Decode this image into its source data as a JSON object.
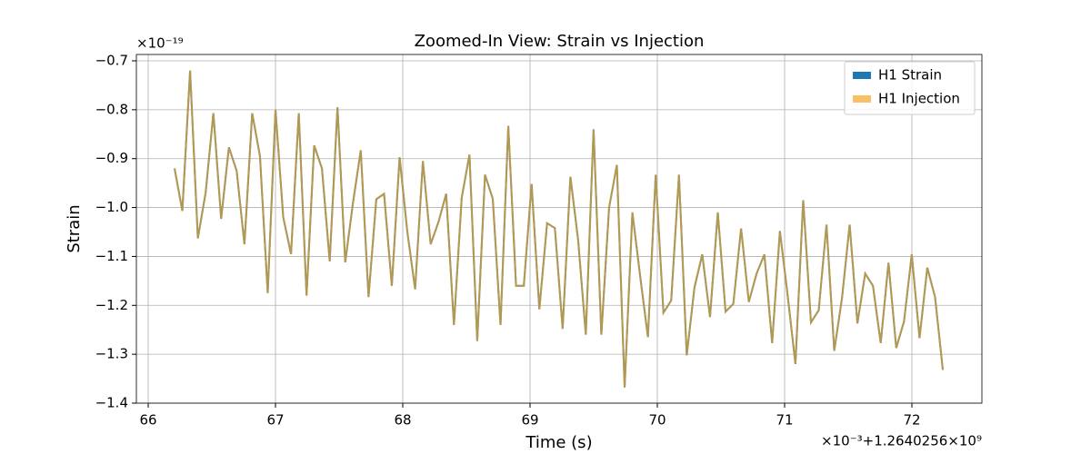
{
  "chart_data": {
    "type": "line",
    "title": "Zoomed-In View: Strain vs Injection",
    "xlabel": "Time (s)",
    "ylabel": "Strain",
    "x_offset_label": "×10⁻³+1.2640256×10⁹",
    "y_offset_label": "×10⁻¹⁹",
    "x": [
      66.207,
      66.268,
      66.329,
      66.39,
      66.451,
      66.512,
      66.573,
      66.634,
      66.695,
      66.756,
      66.817,
      66.878,
      66.939,
      67.0,
      67.061,
      67.122,
      67.183,
      67.244,
      67.304,
      67.365,
      67.426,
      67.487,
      67.548,
      67.609,
      67.67,
      67.731,
      67.792,
      67.853,
      67.914,
      67.975,
      68.036,
      68.097,
      68.158,
      68.219,
      68.28,
      68.341,
      68.402,
      68.463,
      68.524,
      68.585,
      68.646,
      68.707,
      68.768,
      68.829,
      68.89,
      68.951,
      69.012,
      69.073,
      69.134,
      69.195,
      69.256,
      69.317,
      69.378,
      69.438,
      69.499,
      69.56,
      69.621,
      69.682,
      69.743,
      69.804,
      69.865,
      69.926,
      69.987,
      70.048,
      70.109,
      70.17,
      70.231,
      70.292,
      70.353,
      70.414,
      70.475,
      70.536,
      70.597,
      70.658,
      70.719,
      70.78,
      70.841,
      70.902,
      70.963,
      71.024,
      71.085,
      71.146,
      71.207,
      71.268,
      71.329,
      71.39,
      71.451,
      71.511,
      71.572,
      71.633,
      71.694,
      71.755,
      71.816,
      71.877,
      71.938,
      71.999,
      72.06,
      72.121,
      72.182,
      72.243
    ],
    "series": [
      {
        "name": "H1 Strain",
        "color": "#1f77b4",
        "alpha": 1,
        "values": [
          -0.92,
          -1.007,
          -0.72,
          -1.063,
          -0.97,
          -0.807,
          -1.023,
          -0.877,
          -0.925,
          -1.075,
          -0.807,
          -0.895,
          -1.175,
          -0.8,
          -1.02,
          -1.095,
          -0.807,
          -1.18,
          -0.873,
          -0.92,
          -1.11,
          -0.795,
          -1.112,
          -0.99,
          -0.883,
          -1.183,
          -0.983,
          -0.972,
          -1.16,
          -0.897,
          -1.05,
          -1.167,
          -0.905,
          -1.075,
          -1.03,
          -0.972,
          -1.24,
          -0.98,
          -0.892,
          -1.273,
          -0.933,
          -0.982,
          -1.24,
          -0.833,
          -1.16,
          -1.16,
          -0.952,
          -1.208,
          -1.032,
          -1.042,
          -1.248,
          -0.937,
          -1.067,
          -1.26,
          -0.84,
          -1.26,
          -1.0,
          -0.913,
          -1.368,
          -1.01,
          -1.14,
          -1.265,
          -0.933,
          -1.215,
          -1.19,
          -0.933,
          -1.302,
          -1.163,
          -1.096,
          -1.224,
          -1.01,
          -1.213,
          -1.197,
          -1.043,
          -1.193,
          -1.135,
          -1.096,
          -1.277,
          -1.048,
          -1.18,
          -1.32,
          -0.985,
          -1.235,
          -1.21,
          -1.035,
          -1.293,
          -1.185,
          -1.035,
          -1.237,
          -1.135,
          -1.16,
          -1.277,
          -1.113,
          -1.287,
          -1.233,
          -1.096,
          -1.267,
          -1.123,
          -1.183,
          -1.332
        ]
      },
      {
        "name": "H1 Injection",
        "color": "#f5a623",
        "alpha": 0.7,
        "values": [
          -0.92,
          -1.007,
          -0.72,
          -1.063,
          -0.97,
          -0.807,
          -1.023,
          -0.877,
          -0.925,
          -1.075,
          -0.807,
          -0.895,
          -1.175,
          -0.8,
          -1.02,
          -1.095,
          -0.807,
          -1.18,
          -0.873,
          -0.92,
          -1.11,
          -0.795,
          -1.112,
          -0.99,
          -0.883,
          -1.183,
          -0.983,
          -0.972,
          -1.16,
          -0.897,
          -1.05,
          -1.167,
          -0.905,
          -1.075,
          -1.03,
          -0.972,
          -1.24,
          -0.98,
          -0.892,
          -1.273,
          -0.933,
          -0.982,
          -1.24,
          -0.833,
          -1.16,
          -1.16,
          -0.952,
          -1.208,
          -1.032,
          -1.042,
          -1.248,
          -0.937,
          -1.067,
          -1.26,
          -0.84,
          -1.26,
          -1.0,
          -0.913,
          -1.368,
          -1.01,
          -1.14,
          -1.265,
          -0.933,
          -1.215,
          -1.19,
          -0.933,
          -1.302,
          -1.163,
          -1.096,
          -1.224,
          -1.01,
          -1.213,
          -1.197,
          -1.043,
          -1.193,
          -1.135,
          -1.096,
          -1.277,
          -1.048,
          -1.18,
          -1.32,
          -0.985,
          -1.235,
          -1.21,
          -1.035,
          -1.293,
          -1.185,
          -1.035,
          -1.237,
          -1.135,
          -1.16,
          -1.277,
          -1.113,
          -1.287,
          -1.233,
          -1.096,
          -1.267,
          -1.123,
          -1.183,
          -1.332
        ]
      }
    ],
    "xlim": [
      65.907,
      72.55
    ],
    "ylim": [
      -1.4,
      -0.687
    ],
    "xticks": [
      66,
      67,
      68,
      69,
      70,
      71,
      72
    ],
    "yticks": [
      {
        "value": -0.7,
        "label": "−0.7"
      },
      {
        "value": -0.8,
        "label": "−0.8"
      },
      {
        "value": -0.9,
        "label": "−0.9"
      },
      {
        "value": -1.0,
        "label": "−1.0"
      },
      {
        "value": -1.1,
        "label": "−1.1"
      },
      {
        "value": -1.2,
        "label": "−1.2"
      },
      {
        "value": -1.3,
        "label": "−1.3"
      },
      {
        "value": -1.4,
        "label": "−1.4"
      }
    ],
    "grid": true,
    "legend": "upper right"
  }
}
